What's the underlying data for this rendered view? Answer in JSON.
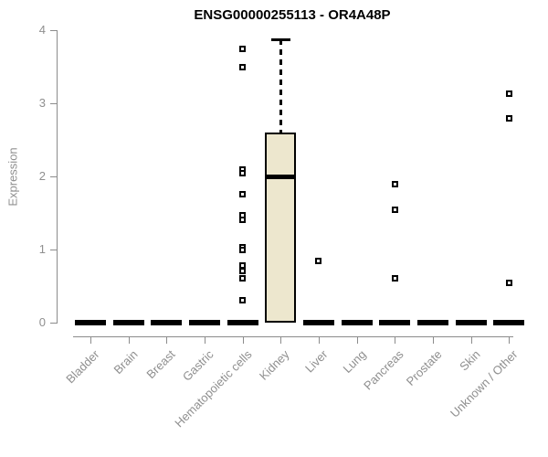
{
  "title": "ENSG00000255113 - OR4A48P",
  "colors": {
    "background": "#ffffff",
    "title_text": "#000000",
    "axis_line": "#8c8c8c",
    "axis_text": "#8f8f8f",
    "box_fill": "#ede7ce",
    "box_stroke": "#000000"
  },
  "chart_data": {
    "type": "boxplot",
    "title": "ENSG00000255113 - OR4A48P",
    "xlabel": "",
    "ylabel": "Expression",
    "ylim": [
      0,
      4
    ],
    "yticks": [
      0,
      1,
      2,
      3,
      4
    ],
    "grid": false,
    "categories": [
      "Bladder",
      "Brain",
      "Breast",
      "Gastric",
      "Hematopoietic cells",
      "Kidney",
      "Liver",
      "Lung",
      "Pancreas",
      "Prostate",
      "Skin",
      "Unknown / Other"
    ],
    "boxes": [
      {
        "category": "Bladder",
        "min": 0,
        "q1": 0,
        "median": 0,
        "q3": 0,
        "max": 0,
        "outliers": []
      },
      {
        "category": "Brain",
        "min": 0,
        "q1": 0,
        "median": 0,
        "q3": 0,
        "max": 0,
        "outliers": []
      },
      {
        "category": "Breast",
        "min": 0,
        "q1": 0,
        "median": 0,
        "q3": 0,
        "max": 0,
        "outliers": []
      },
      {
        "category": "Gastric",
        "min": 0,
        "q1": 0,
        "median": 0,
        "q3": 0,
        "max": 0,
        "outliers": []
      },
      {
        "category": "Hematopoietic cells",
        "min": 0,
        "q1": 0,
        "median": 0,
        "q3": 0,
        "max": 0,
        "outliers": [
          3.75,
          3.5,
          2.1,
          2.04,
          1.76,
          1.47,
          1.41,
          1.03,
          0.99,
          0.78,
          0.71,
          0.61,
          0.31
        ]
      },
      {
        "category": "Kidney",
        "min": 0,
        "q1": 0,
        "median": 1.99,
        "q3": 2.6,
        "max": 3.88,
        "outliers": []
      },
      {
        "category": "Liver",
        "min": 0,
        "q1": 0,
        "median": 0,
        "q3": 0,
        "max": 0,
        "outliers": [
          0.85
        ]
      },
      {
        "category": "Lung",
        "min": 0,
        "q1": 0,
        "median": 0,
        "q3": 0,
        "max": 0,
        "outliers": []
      },
      {
        "category": "Pancreas",
        "min": 0,
        "q1": 0,
        "median": 0,
        "q3": 0,
        "max": 0,
        "outliers": [
          1.89,
          1.55,
          0.61
        ]
      },
      {
        "category": "Prostate",
        "min": 0,
        "q1": 0,
        "median": 0,
        "q3": 0,
        "max": 0,
        "outliers": []
      },
      {
        "category": "Skin",
        "min": 0,
        "q1": 0,
        "median": 0,
        "q3": 0,
        "max": 0,
        "outliers": []
      },
      {
        "category": "Unknown / Other",
        "min": 0,
        "q1": 0,
        "median": 0,
        "q3": 0,
        "max": 0,
        "outliers": [
          3.13,
          2.79,
          0.55
        ]
      }
    ]
  }
}
